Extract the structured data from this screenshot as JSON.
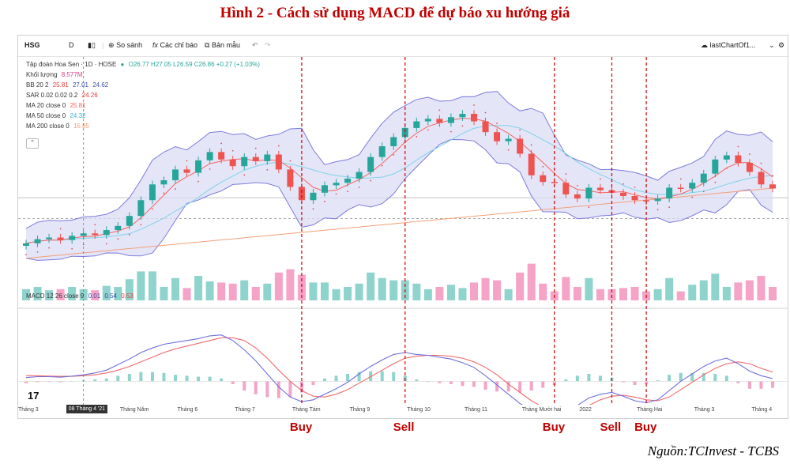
{
  "figure_title": "Hình 2 - Cách sử dụng MACD để dự báo xu hướng giá",
  "source": "Nguồn:TCInvest - TCBS",
  "toolbar": {
    "symbol": "HSG",
    "interval": "D",
    "compare_label": "So sánh",
    "indicators_label": "Các chỉ báo",
    "templates_label": "Bản mẫu",
    "layout_name": "lastChartOf1..."
  },
  "legend": {
    "company": "Tập đoàn Hoa Sen · 1D · HOSE",
    "ohlc": "O26.77 H27.05 L26.59 C26.86 +0.27 (+1.03%)",
    "volume_label": "Khối lượng",
    "volume_value": "8.577M",
    "bb_label": "BB 20 2",
    "bb_v1": "25.81",
    "bb_v2": "27.01",
    "bb_v3": "24.62",
    "sar_label": "SAR 0.02 0.02 0.2",
    "sar_value": "24.26",
    "ma20_label": "MA 20 close 0",
    "ma20_value": "25.81",
    "ma50_label": "MA 50 close 0",
    "ma50_value": "24.32",
    "ma200_label": "MA 200 close 0",
    "ma200_value": "16.85",
    "macd_label": "MACD 12 26 close 9",
    "macd_v1": "0.01",
    "macd_v2": "0.54",
    "macd_v3": "0.53"
  },
  "colors": {
    "candle_up": "#26a69a",
    "candle_down": "#ef5350",
    "bb_fill": "#dcdcf5",
    "bb_line": "#7b7bdc",
    "ma20": "#f4655f",
    "ma50": "#7dd3e8",
    "ma200": "#f2a07a",
    "sar": "#d9534f",
    "vol_up": "#8fd3cd",
    "vol_down": "#f5a3c7",
    "macd": "#6f6fe0",
    "signal": "#f06b6b",
    "signal_marker": "#d00000"
  },
  "chart_data": {
    "type": "line",
    "price_series": [
      20.3,
      20.8,
      21.0,
      20.7,
      21.2,
      21.5,
      21.3,
      21.9,
      22.4,
      23.6,
      25.5,
      27.4,
      27.9,
      29.2,
      28.8,
      30.3,
      31.3,
      30.4,
      29.6,
      30.7,
      30.2,
      31.0,
      29.2,
      27.1,
      25.5,
      26.4,
      27.3,
      27.6,
      28.1,
      28.9,
      30.7,
      32.0,
      33.1,
      34.2,
      35.0,
      35.3,
      34.8,
      35.5,
      35.9,
      35.0,
      33.7,
      32.6,
      32.9,
      31.1,
      28.5,
      27.7,
      27.6,
      26.2,
      25.7,
      27.0,
      26.7,
      26.4,
      26.0,
      25.5,
      25.4,
      25.7,
      27.0,
      26.9,
      27.6,
      28.7,
      30.4,
      30.9,
      30.0,
      28.9,
      27.4,
      26.9
    ],
    "price_axis": {
      "min": 18,
      "max": 38
    },
    "macd_values": [
      0.2,
      0.25,
      0.25,
      0.22,
      0.28,
      0.35,
      0.45,
      0.6,
      0.9,
      1.2,
      1.55,
      1.8,
      2.0,
      2.1,
      2.2,
      2.3,
      2.45,
      2.5,
      2.2,
      1.7,
      1.1,
      0.4,
      -0.3,
      -0.85,
      -1.1,
      -1.0,
      -0.7,
      -0.4,
      -0.05,
      0.4,
      0.8,
      1.15,
      1.45,
      1.55,
      1.45,
      1.4,
      1.3,
      1.2,
      1.0,
      0.75,
      0.3,
      -0.2,
      -0.7,
      -1.2,
      -1.55,
      -1.75,
      -1.85,
      -1.65,
      -1.3,
      -0.9,
      -0.7,
      -0.6,
      -0.8,
      -1.05,
      -1.15,
      -1.0,
      -0.5,
      0.0,
      0.4,
      0.8,
      1.1,
      1.25,
      0.95,
      0.55,
      0.3,
      0.15
    ],
    "signal_values": [
      0.3,
      0.3,
      0.28,
      0.27,
      0.27,
      0.3,
      0.35,
      0.45,
      0.6,
      0.8,
      1.05,
      1.3,
      1.55,
      1.75,
      1.9,
      2.05,
      2.2,
      2.35,
      2.35,
      2.2,
      1.8,
      1.25,
      0.6,
      0.0,
      -0.5,
      -0.8,
      -0.85,
      -0.7,
      -0.45,
      -0.1,
      0.25,
      0.6,
      0.95,
      1.25,
      1.35,
      1.4,
      1.4,
      1.35,
      1.25,
      1.05,
      0.75,
      0.35,
      -0.15,
      -0.6,
      -1.05,
      -1.4,
      -1.65,
      -1.75,
      -1.6,
      -1.3,
      -1.0,
      -0.8,
      -0.75,
      -0.85,
      -1.0,
      -1.05,
      -0.85,
      -0.45,
      -0.05,
      0.35,
      0.7,
      0.95,
      1.05,
      0.95,
      0.7,
      0.5
    ],
    "macd_axis": {
      "min": -2.2,
      "max": 3.0
    },
    "x_ticks": [
      "Tháng 3",
      "Tháng Năm",
      "Tháng 6",
      "Tháng 7",
      "Tháng Tám",
      "Tháng 9",
      "Tháng 10",
      "Tháng 11",
      "Tháng Mười hai",
      "2022",
      "Tháng Hai",
      "Tháng 3",
      "Tháng 4"
    ],
    "x_tick_index": [
      0,
      9,
      14,
      19,
      24,
      29,
      34,
      39,
      44,
      49,
      54,
      59,
      64
    ],
    "crosshair_date": "08 Tháng 4 '21",
    "crosshair_index": 5,
    "signals": [
      {
        "label": "Buy",
        "index": 24
      },
      {
        "label": "Sell",
        "index": 33
      },
      {
        "label": "Buy",
        "index": 46
      },
      {
        "label": "Sell",
        "index": 51
      },
      {
        "label": "Buy",
        "index": 54
      }
    ],
    "price_axis_label": "",
    "macd_axis_label": ""
  }
}
